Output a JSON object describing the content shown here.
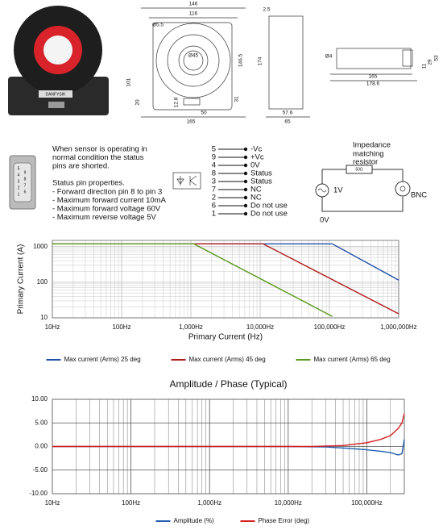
{
  "photo": {
    "logo": "DANFYSIK"
  },
  "drawings": {
    "dims": [
      "146",
      "116",
      "Ø5.5",
      "Ø45",
      "146.5",
      "101",
      "20",
      "12.8",
      "50",
      "31",
      "165",
      "2.5",
      "174",
      "57.6",
      "65",
      "Ø4",
      "165",
      "178.6",
      "11",
      "29",
      "53"
    ]
  },
  "connector_pins": [
    "9",
    "8",
    "7",
    "6",
    "5",
    "4",
    "3",
    "2",
    "1"
  ],
  "status_text": {
    "intro": [
      "When sensor is operating in",
      "normal condition the status",
      "pins are shorted."
    ],
    "heading": "Status pin properties.",
    "items": [
      "- Forward direction pin 8 to pin 3",
      "- Maximum forward current 10mA",
      "- Maximum forward voltage 60V",
      "- Maximum reverse voltage 5V"
    ]
  },
  "pins": [
    {
      "num": "5",
      "label": "-Vc"
    },
    {
      "num": "9",
      "label": "+Vc"
    },
    {
      "num": "4",
      "label": "0V"
    },
    {
      "num": "8",
      "label": "Status"
    },
    {
      "num": "3",
      "label": "Status"
    },
    {
      "num": "7",
      "label": "NC"
    },
    {
      "num": "2",
      "label": "NC"
    },
    {
      "num": "6",
      "label": "Do not use"
    },
    {
      "num": "1",
      "label": "Do not use"
    }
  ],
  "circuit": {
    "title": [
      "Impedance",
      "matching",
      "resistor"
    ],
    "resistor": "50Ω",
    "source": "1V",
    "ground": "0V",
    "output": "BNC"
  },
  "chart_data": [
    {
      "type": "line",
      "xlabel": "Primary Current  (Hz)",
      "ylabel": "Primary Current  (A)",
      "xscale": "log",
      "yscale": "log",
      "xlim": [
        10,
        1000000
      ],
      "ylim": [
        10,
        1500
      ],
      "xticks": [
        {
          "value": 10,
          "label": "10Hz"
        },
        {
          "value": 100,
          "label": "100Hz"
        },
        {
          "value": 1000,
          "label": "1,000Hz"
        },
        {
          "value": 10000,
          "label": "10,000Hz"
        },
        {
          "value": 100000,
          "label": "100,000Hz"
        },
        {
          "value": 1000000,
          "label": "1,000,000Hz"
        }
      ],
      "yticks": [
        10,
        100,
        1000
      ],
      "grid": true,
      "minor_grid": true,
      "grid_color": "#bbbbbb",
      "legend": "bottom",
      "series": [
        {
          "name": "Max current (Arms) 25 deg",
          "color": "#1f4fa8",
          "x": [
            10,
            110000,
            1000000
          ],
          "values": [
            1200,
            1200,
            115
          ]
        },
        {
          "name": "Max current (Arms) 45 deg",
          "color": "#b01c1c",
          "x": [
            10,
            11000,
            1000000
          ],
          "values": [
            1200,
            1200,
            13
          ]
        },
        {
          "name": "Max current (Arms) 65 deg",
          "color": "#5c9a1e",
          "x": [
            10,
            1100,
            110000
          ],
          "values": [
            1200,
            1200,
            11
          ]
        }
      ]
    },
    {
      "type": "line",
      "title": "Amplitude / Phase (Typical)",
      "xscale": "log",
      "xlim": [
        10,
        300000
      ],
      "ylim": [
        -10,
        10
      ],
      "xticks": [
        {
          "value": 10,
          "label": "10Hz"
        },
        {
          "value": 100,
          "label": "100Hz"
        },
        {
          "value": 1000,
          "label": "1,000Hz"
        },
        {
          "value": 10000,
          "label": "10,000Hz"
        },
        {
          "value": 100000,
          "label": "100,000Hz"
        }
      ],
      "yticks": [
        {
          "value": -10,
          "label": "-10.00"
        },
        {
          "value": -5,
          "label": "-5.00"
        },
        {
          "value": 0,
          "label": "0.00"
        },
        {
          "value": 5,
          "label": "5.00"
        },
        {
          "value": 10,
          "label": "10.00"
        }
      ],
      "grid": true,
      "minor_grid": true,
      "grid_color": "#555555",
      "legend": "bottom",
      "series": [
        {
          "name": "Amplitude (%)",
          "color": "#1f5fb0",
          "x": [
            10,
            10000,
            30000,
            60000,
            100000,
            150000,
            200000,
            250000,
            280000,
            300000
          ],
          "values": [
            0,
            0,
            -0.1,
            -0.4,
            -0.7,
            -1,
            -1.3,
            -1.8,
            -1.5,
            1.5
          ]
        },
        {
          "name": "Phase Error (deg)",
          "color": "#d42020",
          "x": [
            10,
            20000,
            50000,
            100000,
            150000,
            200000,
            250000,
            280000,
            300000
          ],
          "values": [
            0,
            0,
            0.2,
            0.8,
            1.5,
            2.3,
            3.8,
            5,
            7
          ]
        }
      ]
    }
  ]
}
